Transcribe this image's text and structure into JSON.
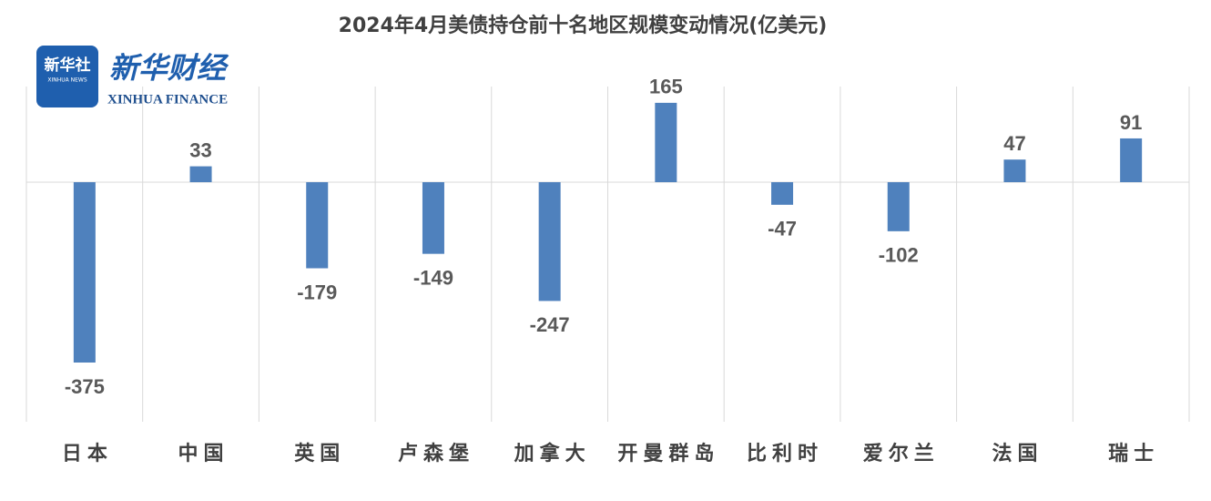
{
  "chart_data": {
    "type": "bar",
    "title": "2024年4月美债持仓前十名地区规模变动情况(亿美元)",
    "categories": [
      "日本",
      "中国",
      "英国",
      "卢森堡",
      "加拿大",
      "开曼群岛",
      "比利时",
      "爱尔兰",
      "法国",
      "瑞士"
    ],
    "values": [
      -375,
      33,
      -179,
      -149,
      -247,
      165,
      -47,
      -102,
      47,
      91
    ],
    "color": "#4f81bd",
    "grid": true
  },
  "logo": {
    "badge": "新华社",
    "badge_sub": "XINHUA NEWS",
    "name": "新华财经",
    "name_en": "XINHUA FINANCE"
  }
}
